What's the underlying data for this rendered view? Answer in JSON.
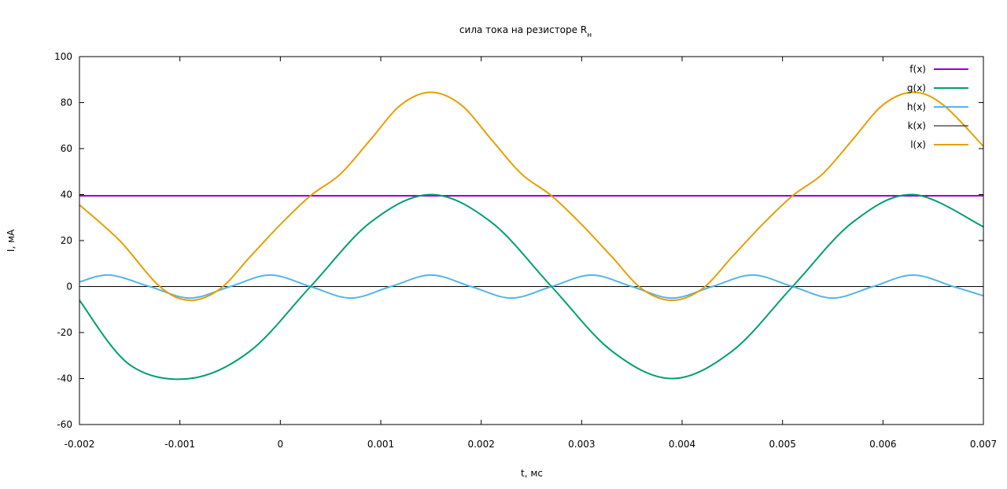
{
  "chart_data": {
    "type": "line",
    "title": "сила тока на резисторе R",
    "title_subscript": "н",
    "xlabel": "t, мс",
    "ylabel": "I, мА",
    "xlim": [
      -0.002,
      0.007
    ],
    "ylim": [
      -60,
      100
    ],
    "x_ticks": [
      "-0.002",
      "-0.001",
      "0",
      "0.001",
      "0.002",
      "0.003",
      "0.004",
      "0.005",
      "0.006",
      "0.007"
    ],
    "y_ticks": [
      "100",
      "80",
      "60",
      "40",
      "20",
      "0",
      "-20",
      "-40",
      "-60"
    ],
    "grid": false,
    "legend_position": "top-right",
    "series": [
      {
        "name": "f(x)",
        "color": "#9400d3",
        "x": [
          -0.002,
          0.007
        ],
        "y": [
          39.5,
          39.5
        ]
      },
      {
        "name": "g(x)",
        "color": "#009e73",
        "x": [
          -0.002,
          -0.0015,
          -0.0009,
          -0.0003,
          0.0003,
          0.0009,
          0.0015,
          0.0021,
          0.0027,
          0.0033,
          0.0039,
          0.0045,
          0.0051,
          0.0057,
          0.0063,
          0.007
        ],
        "y": [
          -6,
          -34,
          -40,
          -28,
          0,
          28,
          40,
          28,
          0,
          -28,
          -40,
          -28,
          0,
          28,
          40,
          26
        ]
      },
      {
        "name": "h(x)",
        "color": "#56b4e9",
        "x": [
          -0.002,
          -0.0017,
          -0.0013,
          -0.0009,
          -0.0005,
          -0.0001,
          0.0003,
          0.0007,
          0.0011,
          0.0015,
          0.0019,
          0.0023,
          0.0027,
          0.0031,
          0.0035,
          0.0039,
          0.0043,
          0.0047,
          0.0051,
          0.0055,
          0.0059,
          0.0063,
          0.0067,
          0.007
        ],
        "y": [
          2,
          5,
          0,
          -5,
          0,
          5,
          0,
          -5,
          0,
          5,
          0,
          -5,
          0,
          5,
          0,
          -5,
          0,
          5,
          0,
          -5,
          0,
          5,
          0,
          -4
        ]
      },
      {
        "name": "k(x)",
        "color": "#000000",
        "x": [
          -0.002,
          0.007
        ],
        "y": [
          0,
          0
        ]
      },
      {
        "name": "l(x)",
        "color": "#e69f00",
        "x": [
          -0.002,
          -0.0016,
          -0.0012,
          -0.0009,
          -0.0006,
          -0.0003,
          0.0,
          0.0003,
          0.0006,
          0.0009,
          0.0012,
          0.0015,
          0.0018,
          0.0021,
          0.0024,
          0.0027,
          0.003,
          0.0033,
          0.0036,
          0.0039,
          0.0042,
          0.0045,
          0.0048,
          0.0051,
          0.0054,
          0.0057,
          0.006,
          0.0063,
          0.0066,
          0.007
        ],
        "y": [
          35.5,
          20,
          0,
          -6,
          -1,
          13,
          27,
          39.5,
          49,
          64,
          79,
          84.5,
          79,
          64,
          49,
          39.5,
          27,
          13,
          -1,
          -6,
          -1,
          13,
          27,
          39.5,
          49,
          64,
          79,
          84.5,
          79,
          61
        ]
      }
    ]
  }
}
